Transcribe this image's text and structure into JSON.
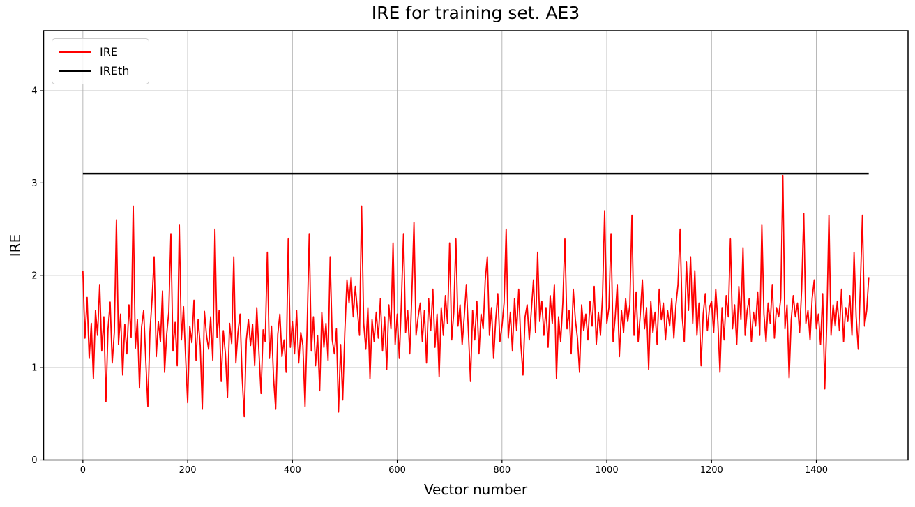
{
  "chart_data": {
    "type": "line",
    "title": "IRE for training set. AE3",
    "xlabel": "Vector number",
    "ylabel": "IRE",
    "xlim": [
      -75,
      1575
    ],
    "ylim": [
      0,
      4.65
    ],
    "x_ticks": [
      0,
      200,
      400,
      600,
      800,
      1000,
      1200,
      1400
    ],
    "y_ticks": [
      0,
      1,
      2,
      3,
      4
    ],
    "grid": true,
    "grid_color": "#b0b0b0",
    "spine_color": "#000000",
    "background_color": "#ffffff",
    "legend_position": "upper-left",
    "series": [
      {
        "name": "IRE",
        "color": "#ff0000",
        "line_width": 1.8,
        "x_start": 0,
        "x_step": 4,
        "x_end": 1500,
        "values": [
          2.05,
          1.32,
          1.76,
          1.1,
          1.48,
          0.88,
          1.62,
          1.35,
          1.9,
          1.18,
          1.55,
          0.63,
          1.42,
          1.71,
          1.05,
          1.38,
          2.6,
          1.25,
          1.58,
          0.92,
          1.47,
          1.15,
          1.68,
          1.33,
          2.75,
          1.21,
          1.52,
          0.78,
          1.44,
          1.62,
          1.08,
          0.58,
          1.39,
          1.74,
          2.2,
          1.12,
          1.5,
          1.28,
          1.83,
          0.95,
          1.36,
          1.6,
          2.45,
          1.18,
          1.49,
          1.02,
          2.55,
          1.3,
          1.66,
          1.12,
          0.62,
          1.45,
          1.27,
          1.73,
          1.08,
          1.52,
          1.24,
          0.55,
          1.61,
          1.35,
          1.2,
          1.55,
          1.08,
          2.5,
          1.33,
          1.62,
          0.85,
          1.4,
          1.15,
          0.68,
          1.48,
          1.26,
          2.2,
          1.05,
          1.38,
          1.58,
          0.9,
          0.47,
          1.3,
          1.52,
          1.24,
          1.47,
          1.02,
          1.65,
          1.18,
          0.72,
          1.41,
          1.28,
          2.25,
          1.1,
          1.45,
          0.88,
          0.55,
          1.36,
          1.58,
          1.12,
          1.3,
          0.95,
          2.4,
          1.22,
          1.5,
          1.15,
          1.62,
          1.05,
          1.38,
          1.24,
          0.58,
          1.44,
          2.45,
          1.18,
          1.55,
          1.02,
          1.35,
          0.75,
          1.6,
          1.22,
          1.48,
          1.08,
          2.2,
          1.3,
          1.15,
          1.42,
          0.52,
          1.25,
          0.65,
          1.38,
          1.95,
          1.7,
          1.98,
          1.55,
          1.88,
          1.62,
          1.35,
          2.75,
          1.48,
          1.2,
          1.65,
          0.88,
          1.52,
          1.28,
          1.6,
          1.32,
          1.75,
          1.18,
          1.55,
          0.98,
          1.68,
          1.42,
          2.35,
          1.25,
          1.58,
          1.1,
          1.72,
          2.45,
          1.38,
          1.62,
          1.15,
          1.8,
          2.57,
          1.35,
          1.55,
          1.7,
          1.28,
          1.62,
          1.05,
          1.75,
          1.4,
          1.85,
          1.22,
          1.58,
          0.9,
          1.65,
          1.35,
          1.78,
          1.48,
          2.35,
          1.3,
          1.6,
          2.4,
          1.45,
          1.68,
          1.25,
          1.55,
          1.9,
          1.38,
          0.85,
          1.62,
          1.3,
          1.72,
          1.15,
          1.58,
          1.42,
          1.95,
          2.2,
          1.35,
          1.65,
          1.1,
          1.52,
          1.8,
          1.28,
          1.45,
          1.7,
          2.5,
          1.32,
          1.6,
          1.18,
          1.75,
          1.4,
          1.85,
          1.25,
          0.92,
          1.55,
          1.68,
          1.3,
          1.62,
          1.95,
          1.38,
          2.25,
          1.5,
          1.72,
          1.35,
          1.65,
          1.22,
          1.78,
          1.48,
          1.9,
          0.88,
          1.55,
          1.28,
          1.7,
          2.4,
          1.42,
          1.62,
          1.15,
          1.85,
          1.52,
          1.32,
          0.95,
          1.68,
          1.4,
          1.58,
          1.3,
          1.72,
          1.45,
          1.88,
          1.25,
          1.6,
          1.35,
          1.78,
          2.7,
          1.48,
          1.65,
          2.45,
          1.28,
          1.55,
          1.9,
          1.12,
          1.62,
          1.38,
          1.75,
          1.5,
          1.68,
          2.65,
          1.35,
          1.82,
          1.28,
          1.58,
          1.95,
          1.42,
          1.65,
          0.98,
          1.72,
          1.38,
          1.6,
          1.25,
          1.85,
          1.52,
          1.7,
          1.3,
          1.62,
          1.45,
          1.75,
          1.32,
          1.68,
          1.9,
          2.5,
          1.55,
          1.28,
          2.15,
          1.62,
          2.2,
          1.48,
          2.05,
          1.35,
          1.7,
          1.02,
          1.58,
          1.8,
          1.4,
          1.65,
          1.72,
          1.38,
          1.85,
          1.5,
          0.95,
          1.65,
          1.3,
          1.78,
          1.55,
          2.4,
          1.42,
          1.68,
          1.25,
          1.88,
          1.52,
          2.3,
          1.35,
          1.62,
          1.75,
          1.28,
          1.6,
          1.45,
          1.82,
          1.35,
          2.55,
          1.58,
          1.28,
          1.7,
          1.48,
          1.9,
          1.32,
          1.65,
          1.55,
          1.75,
          3.08,
          1.42,
          1.68,
          0.89,
          1.52,
          1.78,
          1.55,
          1.7,
          1.38,
          1.85,
          2.67,
          1.48,
          1.62,
          1.3,
          1.75,
          1.95,
          1.42,
          1.58,
          1.25,
          1.8,
          0.77,
          1.52,
          2.65,
          1.35,
          1.68,
          1.45,
          1.72,
          1.4,
          1.85,
          1.28,
          1.65,
          1.5,
          1.78,
          1.35,
          2.25,
          1.55,
          1.2,
          1.88,
          2.65,
          1.45,
          1.62,
          1.98
        ]
      },
      {
        "name": "IREth",
        "color": "#000000",
        "line_width": 2.5,
        "type": "hline",
        "y": 3.1,
        "x_range": [
          0,
          1500
        ]
      }
    ]
  },
  "legend": {
    "items": [
      {
        "label": "IRE",
        "color": "#ff0000"
      },
      {
        "label": "IREth",
        "color": "#000000"
      }
    ]
  }
}
